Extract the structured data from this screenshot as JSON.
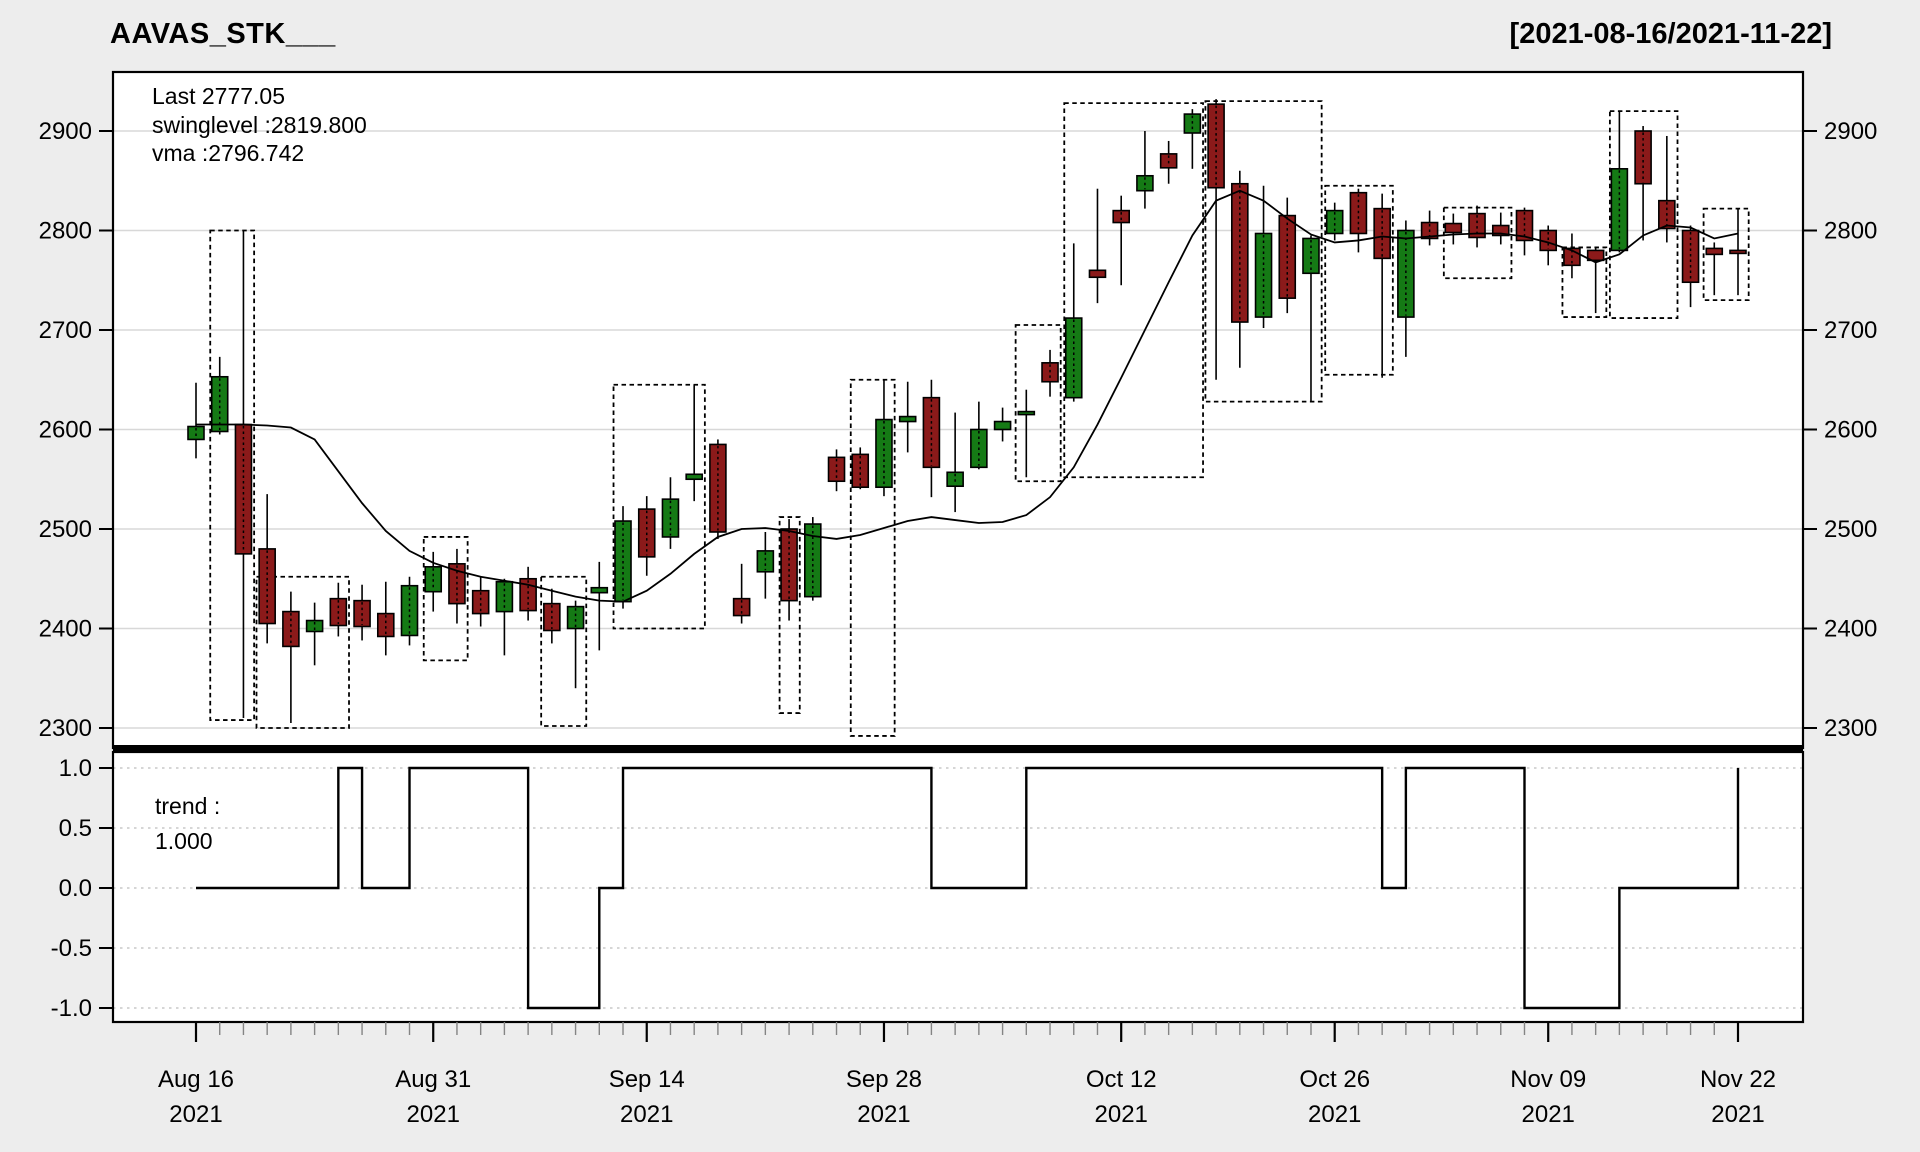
{
  "header": {
    "title": "AAVAS_STK___",
    "date_range": "[2021-08-16/2021-11-22]"
  },
  "main_panel_legend": {
    "last": "Last 2777.05",
    "swinglevel": "swinglevel :2819.800",
    "vma": "vma :2796.742"
  },
  "trend_panel_legend": {
    "line1": "trend :",
    "line2": "1.000"
  },
  "chart_data": {
    "type": "candlestick",
    "title": "AAVAS_STK___",
    "subtitle": "[2021-08-16/2021-11-22]",
    "last_close": 2777.05,
    "swinglevel": 2819.8,
    "vma_last": 2796.742,
    "trend_last": 1.0,
    "ylim": [
      2280,
      2960
    ],
    "y_ticks": [
      2900,
      2800,
      2700,
      2600,
      2500,
      2400,
      2300
    ],
    "trend_ticks": [
      "1.0",
      "0.5",
      "0.0",
      "-0.5",
      "-1.0"
    ],
    "trend_tick_values": [
      1.0,
      0.5,
      0.0,
      -0.5,
      -1.0
    ],
    "x_tick_labels": [
      {
        "index": 0,
        "line1": "Aug 16",
        "line2": "2021"
      },
      {
        "index": 10,
        "line1": "Aug 31",
        "line2": "2021"
      },
      {
        "index": 19,
        "line1": "Sep 14",
        "line2": "2021"
      },
      {
        "index": 29,
        "line1": "Sep 28",
        "line2": "2021"
      },
      {
        "index": 39,
        "line1": "Oct 12",
        "line2": "2021"
      },
      {
        "index": 48,
        "line1": "Oct 26",
        "line2": "2021"
      },
      {
        "index": 57,
        "line1": "Nov 09",
        "line2": "2021"
      },
      {
        "index": 65,
        "line1": "Nov 22",
        "line2": "2021"
      }
    ],
    "dates": [
      "Aug 16",
      "Aug 17",
      "Aug 18",
      "Aug 20",
      "Aug 23",
      "Aug 24",
      "Aug 25",
      "Aug 26",
      "Aug 27",
      "Aug 30",
      "Aug 31",
      "Sep 01",
      "Sep 02",
      "Sep 03",
      "Sep 06",
      "Sep 07",
      "Sep 08",
      "Sep 09",
      "Sep 13",
      "Sep 14",
      "Sep 15",
      "Sep 16",
      "Sep 17",
      "Sep 20",
      "Sep 21",
      "Sep 22",
      "Sep 23",
      "Sep 24",
      "Sep 27",
      "Sep 28",
      "Sep 29",
      "Sep 30",
      "Oct 01",
      "Oct 04",
      "Oct 05",
      "Oct 06",
      "Oct 07",
      "Oct 08",
      "Oct 11",
      "Oct 12",
      "Oct 13",
      "Oct 14",
      "Oct 18",
      "Oct 19",
      "Oct 20",
      "Oct 21",
      "Oct 22",
      "Oct 25",
      "Oct 26",
      "Oct 27",
      "Oct 28",
      "Oct 29",
      "Nov 01",
      "Nov 02",
      "Nov 03",
      "Nov 04",
      "Nov 08",
      "Nov 09",
      "Nov 10",
      "Nov 11",
      "Nov 12",
      "Nov 15",
      "Nov 16",
      "Nov 17",
      "Nov 18",
      "Nov 22"
    ],
    "ohlc": [
      [
        2590,
        2647,
        2571,
        2603
      ],
      [
        2598,
        2673,
        2595,
        2653
      ],
      [
        2605,
        2800,
        2310,
        2475
      ],
      [
        2480,
        2535,
        2385,
        2405
      ],
      [
        2417,
        2437,
        2305,
        2382
      ],
      [
        2397,
        2426,
        2363,
        2408
      ],
      [
        2430,
        2446,
        2392,
        2403
      ],
      [
        2428,
        2444,
        2388,
        2402
      ],
      [
        2415,
        2447,
        2373,
        2392
      ],
      [
        2393,
        2452,
        2383,
        2443
      ],
      [
        2437,
        2477,
        2417,
        2462
      ],
      [
        2465,
        2480,
        2405,
        2425
      ],
      [
        2438,
        2452,
        2402,
        2415
      ],
      [
        2417,
        2450,
        2373,
        2447
      ],
      [
        2450,
        2462,
        2408,
        2418
      ],
      [
        2425,
        2440,
        2385,
        2398
      ],
      [
        2400,
        2428,
        2340,
        2422
      ],
      [
        2436,
        2467,
        2378,
        2441
      ],
      [
        2427,
        2523,
        2420,
        2508
      ],
      [
        2520,
        2533,
        2453,
        2472
      ],
      [
        2492,
        2552,
        2480,
        2530
      ],
      [
        2550,
        2645,
        2528,
        2555
      ],
      [
        2585,
        2590,
        2490,
        2497
      ],
      [
        2430,
        2465,
        2405,
        2413
      ],
      [
        2457,
        2497,
        2430,
        2478
      ],
      [
        2500,
        2510,
        2408,
        2428
      ],
      [
        2432,
        2512,
        2428,
        2505
      ],
      [
        2572,
        2580,
        2538,
        2548
      ],
      [
        2575,
        2582,
        2540,
        2542
      ],
      [
        2542,
        2650,
        2533,
        2610
      ],
      [
        2608,
        2648,
        2577,
        2613
      ],
      [
        2632,
        2650,
        2532,
        2562
      ],
      [
        2543,
        2617,
        2517,
        2557
      ],
      [
        2562,
        2628,
        2560,
        2600
      ],
      [
        2600,
        2622,
        2588,
        2608
      ],
      [
        2615,
        2640,
        2552,
        2618
      ],
      [
        2667,
        2680,
        2633,
        2648
      ],
      [
        2632,
        2787,
        2628,
        2712
      ],
      [
        2760,
        2842,
        2727,
        2753
      ],
      [
        2820,
        2835,
        2745,
        2808
      ],
      [
        2840,
        2900,
        2822,
        2855
      ],
      [
        2877,
        2890,
        2847,
        2863
      ],
      [
        2898,
        2922,
        2862,
        2917
      ],
      [
        2927,
        2932,
        2650,
        2843
      ],
      [
        2847,
        2860,
        2662,
        2708
      ],
      [
        2713,
        2845,
        2702,
        2797
      ],
      [
        2815,
        2833,
        2717,
        2732
      ],
      [
        2757,
        2795,
        2628,
        2792
      ],
      [
        2797,
        2828,
        2790,
        2820
      ],
      [
        2838,
        2842,
        2778,
        2797
      ],
      [
        2822,
        2837,
        2652,
        2772
      ],
      [
        2713,
        2810,
        2673,
        2800
      ],
      [
        2808,
        2820,
        2785,
        2792
      ],
      [
        2807,
        2817,
        2786,
        2798
      ],
      [
        2817,
        2825,
        2783,
        2793
      ],
      [
        2805,
        2818,
        2786,
        2795
      ],
      [
        2820,
        2823,
        2775,
        2790
      ],
      [
        2800,
        2805,
        2765,
        2780
      ],
      [
        2782,
        2797,
        2752,
        2765
      ],
      [
        2780,
        2783,
        2717,
        2770
      ],
      [
        2780,
        2920,
        2778,
        2862
      ],
      [
        2900,
        2905,
        2790,
        2847
      ],
      [
        2830,
        2895,
        2788,
        2802
      ],
      [
        2800,
        2805,
        2723,
        2748
      ],
      [
        2782,
        2788,
        2735,
        2776
      ],
      [
        2780,
        2822,
        2735,
        2777
      ]
    ],
    "vma": [
      2605,
      2605,
      2605,
      2604,
      2602,
      2590,
      2558,
      2526,
      2498,
      2478,
      2466,
      2458,
      2452,
      2448,
      2444,
      2438,
      2432,
      2428,
      2427,
      2438,
      2455,
      2475,
      2492,
      2500,
      2501,
      2498,
      2493,
      2490,
      2494,
      2501,
      2508,
      2512,
      2509,
      2506,
      2507,
      2514,
      2532,
      2562,
      2605,
      2652,
      2700,
      2748,
      2795,
      2830,
      2840,
      2830,
      2812,
      2796,
      2788,
      2790,
      2794,
      2792,
      2794,
      2796,
      2797,
      2797,
      2794,
      2788,
      2780,
      2768,
      2776,
      2795,
      2805,
      2803,
      2792,
      2797
    ],
    "trend": [
      0,
      0,
      0,
      0,
      0,
      0,
      1,
      0,
      0,
      1,
      1,
      1,
      1,
      1,
      -1,
      -1,
      -1,
      0,
      1,
      1,
      1,
      1,
      1,
      1,
      1,
      1,
      1,
      1,
      1,
      1,
      1,
      0,
      0,
      0,
      0,
      1,
      1,
      1,
      1,
      1,
      1,
      1,
      1,
      1,
      1,
      1,
      1,
      1,
      1,
      1,
      0,
      1,
      1,
      1,
      1,
      1,
      -1,
      -1,
      -1,
      -1,
      0,
      0,
      0,
      0,
      0,
      1
    ],
    "swing_boxes": [
      {
        "i1": 0.6,
        "i2": 2.45,
        "top": 2800,
        "bottom": 2308
      },
      {
        "i1": 2.55,
        "i2": 6.45,
        "top": 2452,
        "bottom": 2300
      },
      {
        "i1": 9.6,
        "i2": 11.45,
        "top": 2492,
        "bottom": 2368
      },
      {
        "i1": 14.55,
        "i2": 16.45,
        "top": 2452,
        "bottom": 2302
      },
      {
        "i1": 17.6,
        "i2": 21.45,
        "top": 2645,
        "bottom": 2400
      },
      {
        "i1": 24.6,
        "i2": 25.45,
        "top": 2512,
        "bottom": 2315
      },
      {
        "i1": 27.6,
        "i2": 29.45,
        "top": 2650,
        "bottom": 2292
      },
      {
        "i1": 34.55,
        "i2": 36.45,
        "top": 2705,
        "bottom": 2548
      },
      {
        "i1": 36.6,
        "i2": 42.45,
        "top": 2928,
        "bottom": 2552
      },
      {
        "i1": 42.55,
        "i2": 47.45,
        "top": 2930,
        "bottom": 2628
      },
      {
        "i1": 47.6,
        "i2": 50.45,
        "top": 2845,
        "bottom": 2655
      },
      {
        "i1": 52.6,
        "i2": 55.45,
        "top": 2823,
        "bottom": 2752
      },
      {
        "i1": 57.6,
        "i2": 59.45,
        "top": 2783,
        "bottom": 2713
      },
      {
        "i1": 59.6,
        "i2": 62.45,
        "top": 2920,
        "bottom": 2712
      },
      {
        "i1": 63.55,
        "i2": 65.45,
        "top": 2822,
        "bottom": 2730
      }
    ],
    "colors": {
      "up": "#157a15",
      "down": "#8b1a1a",
      "last_text": "#8b1d1d",
      "line": "#000000",
      "grid": "#d8d8d8",
      "trend_grid": "#c8c8c8",
      "background": "#ededed",
      "plot_bg": "#ffffff",
      "box_border": "#000000",
      "minor_tick": "#848484"
    }
  }
}
